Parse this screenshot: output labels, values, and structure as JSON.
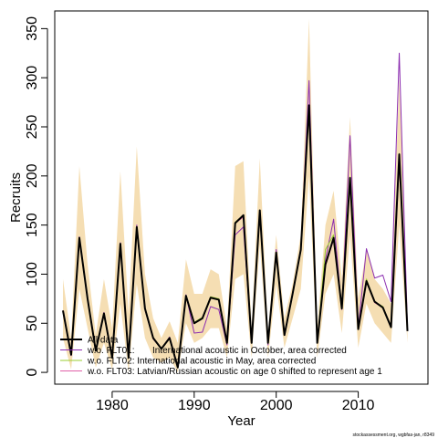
{
  "chart_data": {
    "type": "line",
    "xlabel": "Year",
    "ylabel": "Recruits",
    "xlim": [
      1973,
      2018.5
    ],
    "ylim": [
      -12,
      368
    ],
    "x_ticks": [
      1980,
      1990,
      2000,
      2010
    ],
    "y_ticks": [
      0,
      50,
      100,
      150,
      200,
      250,
      300,
      350
    ],
    "x": [
      1974,
      1975,
      1976,
      1977,
      1978,
      1979,
      1980,
      1981,
      1982,
      1983,
      1984,
      1985,
      1986,
      1987,
      1988,
      1989,
      1990,
      1991,
      1992,
      1993,
      1994,
      1995,
      1996,
      1997,
      1998,
      1999,
      2000,
      2001,
      2002,
      2003,
      2004,
      2005,
      2006,
      2007,
      2008,
      2009,
      2010,
      2011,
      2012,
      2013,
      2014,
      2015,
      2016
    ],
    "band": {
      "color": "#f5deb3",
      "lower": [
        35,
        3,
        85,
        45,
        5,
        30,
        3,
        70,
        0,
        90,
        35,
        15,
        10,
        15,
        0,
        50,
        30,
        35,
        45,
        45,
        15,
        95,
        100,
        15,
        130,
        15,
        90,
        25,
        55,
        85,
        200,
        15,
        80,
        100,
        40,
        140,
        25,
        70,
        50,
        40,
        30,
        150,
        30
      ],
      "upper": [
        95,
        35,
        210,
        110,
        38,
        95,
        45,
        205,
        60,
        230,
        100,
        55,
        35,
        52,
        30,
        115,
        80,
        80,
        105,
        100,
        45,
        210,
        215,
        45,
        218,
        40,
        140,
        55,
        90,
        140,
        360,
        45,
        150,
        185,
        95,
        260,
        75,
        125,
        95,
        85,
        70,
        300,
        65
      ]
    },
    "series": [
      {
        "name": "All data",
        "color": "#000000",
        "width": 2,
        "values": [
          63,
          18,
          137,
          75,
          22,
          60,
          15,
          131,
          15,
          148,
          65,
          35,
          24,
          35,
          5,
          78,
          50,
          55,
          76,
          74,
          30,
          152,
          160,
          30,
          165,
          30,
          122,
          38,
          80,
          125,
          272,
          30,
          110,
          137,
          65,
          198,
          44,
          93,
          72,
          66,
          46,
          222,
          42
        ]
      },
      {
        "name": "w.o. FLT01:       International acoustic in October, area corrected",
        "color": "#8b2db0",
        "width": 1,
        "values": [
          62,
          17,
          138,
          75,
          22,
          61,
          16,
          132,
          16,
          150,
          64,
          34,
          24,
          36,
          6,
          79,
          40,
          41,
          67,
          64,
          28,
          140,
          148,
          30,
          163,
          28,
          125,
          38,
          81,
          124,
          297,
          31,
          115,
          156,
          64,
          241,
          45,
          126,
          96,
          99,
          72,
          325,
          45
        ]
      },
      {
        "name": "w.o. FLT02: International acoustic in May, area corrected",
        "color": "#9acd32",
        "width": 1,
        "values": [
          63,
          18,
          137,
          75,
          22,
          60,
          15,
          131,
          15,
          148,
          65,
          35,
          24,
          35,
          5,
          78,
          51,
          56,
          77,
          75,
          30,
          153,
          160,
          30,
          165,
          30,
          122,
          38,
          80,
          126,
          272,
          30,
          125,
          140,
          66,
          199,
          44,
          95,
          72,
          67,
          46,
          223,
          42
        ]
      },
      {
        "name": "w.o. FLT03: Latvian/Russian acoustic on age 0 shifted to represent age 1",
        "color": "#e060a8",
        "width": 1,
        "values": [
          63,
          18,
          137,
          75,
          22,
          60,
          15,
          130,
          15,
          147,
          65,
          35,
          24,
          35,
          5,
          78,
          50,
          55,
          76,
          74,
          30,
          152,
          158,
          30,
          164,
          30,
          121,
          38,
          80,
          124,
          270,
          30,
          108,
          135,
          65,
          196,
          44,
          92,
          71,
          66,
          46,
          212,
          42
        ]
      }
    ],
    "legend_position": "bottom-left"
  },
  "footnote": "stockassessment.org, wgbfas-jan, r8349"
}
